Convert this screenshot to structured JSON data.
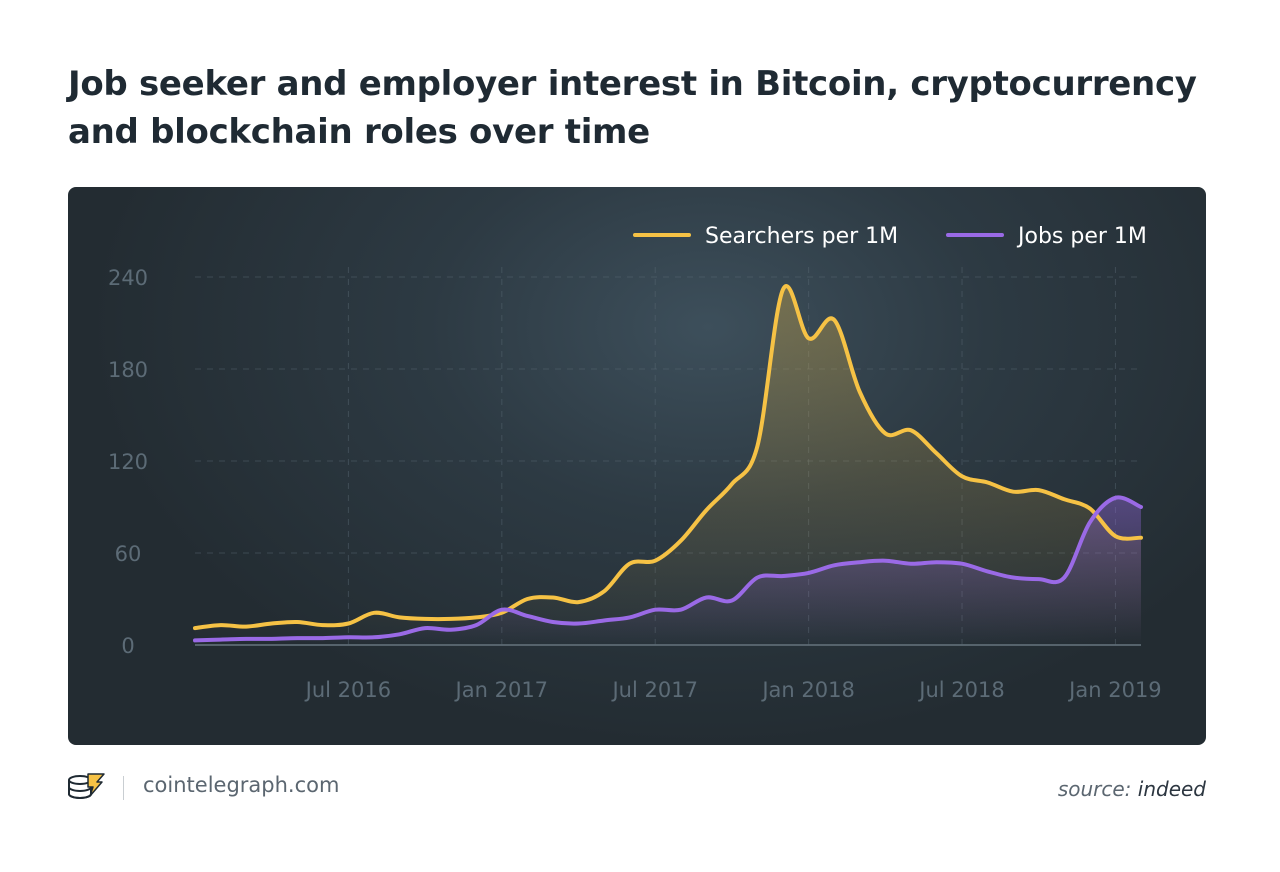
{
  "title": "Job seeker and employer interest in Bitcoin, cryptocurrency and blockchain roles over time",
  "footer": {
    "site": "cointelegraph.com",
    "source_prefix": "source:",
    "source_name": "indeed",
    "logo_icon": "cointelegraph-logo-icon"
  },
  "colors": {
    "searchers": "#f6c245",
    "jobs": "#9a6ae6",
    "axis_text": "#5c6b76",
    "background": "#2d3a43"
  },
  "chart_data": {
    "type": "line",
    "title": "Job seeker and employer interest in Bitcoin, cryptocurrency and blockchain roles over time",
    "xlabel": "",
    "ylabel": "",
    "x_tick_labels": [
      "Jul 2016",
      "Jan 2017",
      "Jul 2017",
      "Jan 2018",
      "Jul 2018",
      "Jan 2019"
    ],
    "y_ticks": [
      0,
      60,
      120,
      180,
      240
    ],
    "ylim": [
      0,
      240
    ],
    "xlim": [
      "2016-01",
      "2019-02"
    ],
    "grid": true,
    "legend_position": "top-right",
    "x": [
      "2016-01",
      "2016-02",
      "2016-03",
      "2016-04",
      "2016-05",
      "2016-06",
      "2016-07",
      "2016-08",
      "2016-09",
      "2016-10",
      "2016-11",
      "2016-12",
      "2017-01",
      "2017-02",
      "2017-03",
      "2017-04",
      "2017-05",
      "2017-06",
      "2017-07",
      "2017-08",
      "2017-09",
      "2017-10",
      "2017-11",
      "2017-12",
      "2018-01",
      "2018-02",
      "2018-03",
      "2018-04",
      "2018-05",
      "2018-06",
      "2018-07",
      "2018-08",
      "2018-09",
      "2018-10",
      "2018-11",
      "2018-12",
      "2019-01",
      "2019-02"
    ],
    "series": [
      {
        "name": "Searchers per 1M",
        "values": [
          11,
          13,
          12,
          14,
          15,
          13,
          14,
          21,
          18,
          17,
          17,
          18,
          21,
          30,
          31,
          28,
          35,
          53,
          55,
          68,
          88,
          105,
          130,
          232,
          200,
          212,
          165,
          138,
          140,
          125,
          110,
          106,
          100,
          101,
          95,
          89,
          71,
          70
        ]
      },
      {
        "name": "Jobs per 1M",
        "values": [
          3,
          3.5,
          4,
          4,
          4.5,
          4.5,
          5,
          5,
          7,
          11,
          10,
          13,
          23,
          19,
          15,
          14,
          16,
          18,
          23,
          23,
          31,
          29,
          44,
          45,
          47,
          52,
          54,
          55,
          53,
          54,
          53,
          48,
          44,
          43,
          44,
          80,
          96,
          90
        ]
      }
    ]
  }
}
